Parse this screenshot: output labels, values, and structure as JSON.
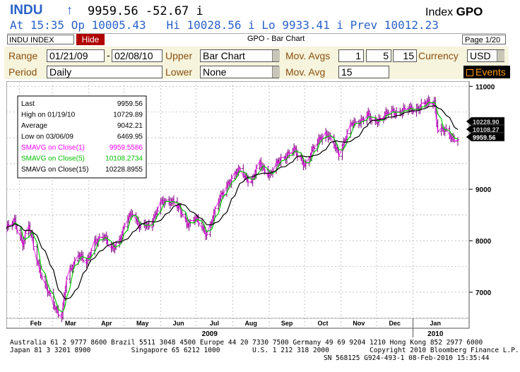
{
  "header": {
    "ticker": "INDU",
    "arrow": "↑",
    "quote_line": "9959.56 -52.67 i",
    "security_type": "Index",
    "function_code": "GPO",
    "detail_line": "At 15:35 Op 10005.43   Hi 10028.56 i Lo 9933.41 i Prev 10012.23"
  },
  "titlebar": {
    "security": "INDU INDEX",
    "hide_label": "Hide",
    "title": "GPO - Bar Chart",
    "page": "Page 1/20"
  },
  "controls": {
    "range_label": "Range",
    "range_start": "01/21/09",
    "range_sep": "-",
    "range_end": "02/08/10",
    "upper_label": "Upper",
    "upper_value": "Bar Chart",
    "mov_avgs_label": "Mov. Avgs",
    "mov_avgs_values": [
      "1",
      "5",
      "15"
    ],
    "currency_label": "Currency",
    "currency_value": "USD",
    "period_label": "Period",
    "period_value": "Daily",
    "lower_label": "Lower",
    "lower_value": "None",
    "mov_avg_label": "Mov. Avg",
    "mov_avg_value": "15",
    "events_label": "Events"
  },
  "colors": {
    "bars": "#800080",
    "sma1": "#ff00ff",
    "sma5": "#00d000",
    "sma15": "#000000",
    "accent": "#2a62c8",
    "brand_red": "#b00000"
  },
  "chart_data": {
    "type": "bar",
    "title": "GPO - Bar Chart",
    "ylim": [
      6300,
      11100
    ],
    "y_ticks": [
      7000,
      8000,
      9000,
      10000,
      11000
    ],
    "months": [
      "Feb",
      "Mar",
      "Apr",
      "May",
      "Jun",
      "Jul",
      "Aug",
      "Sep",
      "Oct",
      "Nov",
      "Dec",
      "Jan"
    ],
    "year_labels": [
      "2009",
      "2010"
    ],
    "legend": {
      "rows": [
        {
          "label": "Last",
          "value": "9959.56"
        },
        {
          "label": "High on  01/19/10",
          "value": "10729.89"
        },
        {
          "label": "Average",
          "value": "9042.21"
        },
        {
          "label": "Low on  03/06/09",
          "value": "6469.95"
        },
        {
          "label": "SMAVG on Close(1)",
          "value": "9959.5586"
        },
        {
          "label": "SMAVG on Close(5)",
          "value": "10108.2734"
        },
        {
          "label": "SMAVG on Close(15)",
          "value": "10228.8955"
        }
      ]
    },
    "last_labels": [
      {
        "name": "SMAVG on Close(15)",
        "value": "10228.90"
      },
      {
        "name": "SMAVG on Close(5)",
        "value": "10108.27"
      },
      {
        "name": "Last",
        "value": "9959.56"
      }
    ],
    "anchors": [
      [
        "2009-01-21",
        8230
      ],
      [
        "2009-01-28",
        8370
      ],
      [
        "2009-02-04",
        7960
      ],
      [
        "2009-02-09",
        8270
      ],
      [
        "2009-02-17",
        7550
      ],
      [
        "2009-02-23",
        7110
      ],
      [
        "2009-03-02",
        6760
      ],
      [
        "2009-03-06",
        6630
      ],
      [
        "2009-03-09",
        6550
      ],
      [
        "2009-03-13",
        7220
      ],
      [
        "2009-03-23",
        7780
      ],
      [
        "2009-03-30",
        7530
      ],
      [
        "2009-04-06",
        8010
      ],
      [
        "2009-04-13",
        8080
      ],
      [
        "2009-04-20",
        7850
      ],
      [
        "2009-04-28",
        8040
      ],
      [
        "2009-05-04",
        8430
      ],
      [
        "2009-05-08",
        8580
      ],
      [
        "2009-05-14",
        8260
      ],
      [
        "2009-05-22",
        8300
      ],
      [
        "2009-06-01",
        8720
      ],
      [
        "2009-06-12",
        8800
      ],
      [
        "2009-06-23",
        8330
      ],
      [
        "2009-06-30",
        8450
      ],
      [
        "2009-07-08",
        8170
      ],
      [
        "2009-07-10",
        8150
      ],
      [
        "2009-07-20",
        8750
      ],
      [
        "2009-07-27",
        9100
      ],
      [
        "2009-08-07",
        9370
      ],
      [
        "2009-08-17",
        9140
      ],
      [
        "2009-08-24",
        9500
      ],
      [
        "2009-09-02",
        9280
      ],
      [
        "2009-09-11",
        9600
      ],
      [
        "2009-09-22",
        9750
      ],
      [
        "2009-10-02",
        9480
      ],
      [
        "2009-10-14",
        10010
      ],
      [
        "2009-10-19",
        10090
      ],
      [
        "2009-10-30",
        9710
      ],
      [
        "2009-11-10",
        10250
      ],
      [
        "2009-11-24",
        10430
      ],
      [
        "2009-11-27",
        10300
      ],
      [
        "2009-12-14",
        10500
      ],
      [
        "2009-12-24",
        10520
      ],
      [
        "2010-01-04",
        10580
      ],
      [
        "2010-01-19",
        10720
      ],
      [
        "2010-01-22",
        10170
      ],
      [
        "2010-01-28",
        10120
      ],
      [
        "2010-02-04",
        10000
      ],
      [
        "2010-02-08",
        9960
      ]
    ]
  },
  "footer": {
    "line1": "Australia 61 2 9777 8600 Brazil 5511 3048 4500 Europe 44 20 7330 7500 Germany 49 69 9204 1210 Hong Kong 852 2977 6000",
    "line2": "Japan 81 3 3201 8900          Singapore 65 6212 1000        U.S. 1 212 318 2000          Copyright 2010 Bloomberg Finance L.P.",
    "line3": "SN 568125 G924-493-1 08-Feb-2010 15:35:44"
  }
}
